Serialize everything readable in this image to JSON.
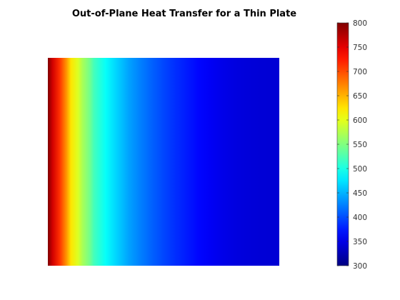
{
  "chart_data": {
    "type": "heatmap",
    "title": "Out-of-Plane Heat Transfer for a Thin Plate",
    "colormap": "jet",
    "colorbar": {
      "min": 300,
      "max": 800,
      "ticks": [
        300,
        350,
        400,
        450,
        500,
        550,
        600,
        650,
        700,
        750,
        800
      ]
    },
    "profile": {
      "description_values_are": "temperature across plate width, left edge to right edge",
      "x": [
        0,
        0.02,
        0.05,
        0.08,
        0.1,
        0.13,
        0.15,
        0.18,
        0.2,
        0.25,
        0.3,
        0.35,
        0.4,
        0.45,
        0.5,
        0.55,
        0.6,
        0.65,
        0.7,
        0.75,
        0.8,
        0.85,
        0.9,
        0.95,
        1.0
      ],
      "values": [
        800,
        760,
        715,
        665,
        625,
        595,
        570,
        545,
        520,
        490,
        465,
        442,
        425,
        410,
        397,
        385,
        375,
        365,
        358,
        352,
        348,
        345,
        343,
        342,
        342
      ]
    }
  }
}
